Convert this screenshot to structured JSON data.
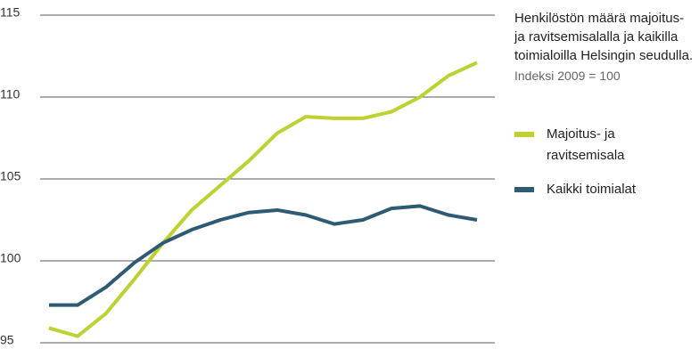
{
  "chart_data": {
    "type": "line",
    "title": "Henkilöstön määrä majoitus- ja ravitsemisalalla ja kaikilla toimialoilla Helsingin seudulla.",
    "subtitle": "Indeksi 2009 = 100",
    "categories": [
      null,
      null,
      null,
      null,
      null,
      null,
      null,
      null,
      null,
      null,
      null,
      null,
      null,
      null,
      null,
      null
    ],
    "series": [
      {
        "name": "Majoitus- ja ravitsemisala",
        "color": "#bdd130",
        "values": [
          95.9,
          95.4,
          96.8,
          98.9,
          101.1,
          103.1,
          104.6,
          106.1,
          107.8,
          108.8,
          108.7,
          108.7,
          109.1,
          110.0,
          111.3,
          112.1
        ]
      },
      {
        "name": "Kaikki toimialat",
        "color": "#2e5a73",
        "values": [
          97.3,
          97.3,
          98.4,
          99.9,
          101.1,
          101.9,
          102.5,
          102.95,
          103.1,
          102.8,
          102.25,
          102.5,
          103.2,
          103.35,
          102.8,
          102.5
        ]
      }
    ],
    "ylim": [
      95,
      115
    ],
    "yticks": [
      95,
      100,
      105,
      110,
      115
    ],
    "grid": true,
    "legend": "right"
  }
}
